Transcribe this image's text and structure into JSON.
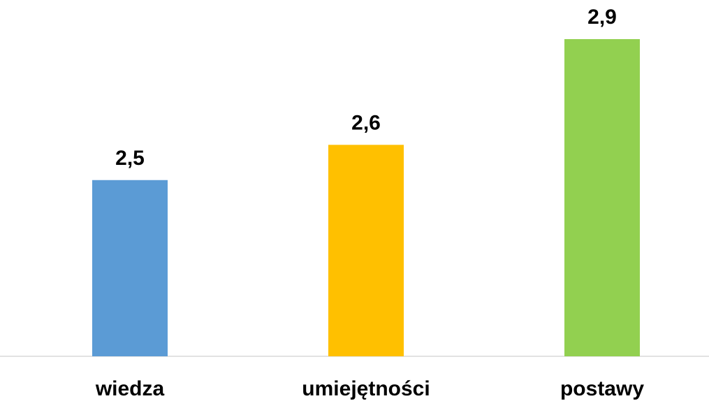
{
  "chart_data": {
    "type": "bar",
    "categories": [
      "wiedza",
      "umiejętności",
      "postawy"
    ],
    "values": [
      2.5,
      2.6,
      2.9
    ],
    "value_labels": [
      "2,5",
      "2,6",
      "2,9"
    ],
    "colors": [
      "#5B9BD5",
      "#FFC000",
      "#92D050"
    ],
    "axis_color": "#D9D9D9",
    "title": "",
    "xlabel": "",
    "ylabel": "",
    "ylim": [
      2.0,
      2.9
    ],
    "grid": false,
    "legend": "none"
  }
}
